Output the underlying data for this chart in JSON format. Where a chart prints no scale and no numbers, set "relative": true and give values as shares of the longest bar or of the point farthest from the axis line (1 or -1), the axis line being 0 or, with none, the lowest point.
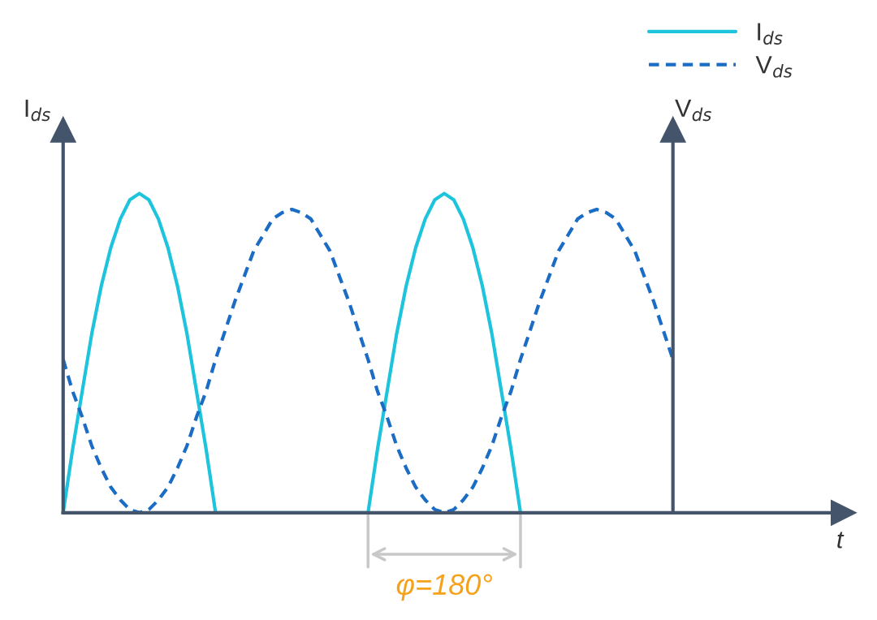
{
  "chart_data": {
    "type": "line",
    "relative": true,
    "ylabel": "I$_{ds}$",
    "y2label": "V$_{ds}$",
    "legend": "top right",
    "annotations": [
      "t",
      "φ=180°"
    ],
    "categories": [
      null,
      null,
      null,
      null,
      null,
      null,
      null,
      null,
      null,
      null,
      null,
      null,
      null,
      null,
      null,
      null,
      null,
      null,
      null,
      null,
      null,
      null,
      null,
      null,
      null,
      null,
      null,
      null,
      null,
      null,
      null,
      null,
      null,
      null,
      null,
      null,
      null,
      null,
      null,
      null,
      null,
      null,
      null,
      null,
      null,
      null,
      null,
      null,
      null,
      null,
      null,
      null,
      null,
      null,
      null,
      null,
      null,
      null,
      null,
      null,
      null,
      null,
      null,
      null,
      null
    ],
    "series": [
      {
        "name": "I$_{ds}$",
        "color": "#1ec3dc",
        "line_style": "solid",
        "values": [
          0,
          0.2,
          0.38,
          0.56,
          0.71,
          0.83,
          0.92,
          0.98,
          1,
          0.98,
          0.92,
          0.83,
          0.71,
          0.56,
          0.38,
          0.2,
          0,
          null,
          null,
          null,
          null,
          null,
          null,
          null,
          null,
          null,
          null,
          null,
          null,
          null,
          null,
          null,
          0,
          0.2,
          0.38,
          0.56,
          0.71,
          0.83,
          0.92,
          0.98,
          1,
          0.98,
          0.92,
          0.83,
          0.71,
          0.56,
          0.38,
          0.2,
          0,
          null,
          null,
          null,
          null,
          null,
          null,
          null,
          null,
          null,
          null,
          null,
          null,
          null,
          null,
          null,
          null
        ]
      },
      {
        "name": "V$_{ds}$",
        "color": "#1a6cc4",
        "line_style": "dashed",
        "values": [
          0.48,
          0.38,
          0.3,
          0.21,
          0.14,
          0.08,
          0.04,
          0.01,
          0,
          0.01,
          0.04,
          0.08,
          0.14,
          0.21,
          0.3,
          0.38,
          0.48,
          0.57,
          0.66,
          0.74,
          0.82,
          0.87,
          0.92,
          0.94,
          0.95,
          0.94,
          0.92,
          0.87,
          0.82,
          0.74,
          0.66,
          0.57,
          0.48,
          0.38,
          0.3,
          0.21,
          0.14,
          0.08,
          0.04,
          0.01,
          0,
          0.01,
          0.04,
          0.08,
          0.14,
          0.21,
          0.3,
          0.38,
          0.48,
          0.57,
          0.66,
          0.74,
          0.82,
          0.87,
          0.92,
          0.94,
          0.95,
          0.94,
          0.92,
          0.87,
          0.82,
          0.74,
          0.66,
          0.57,
          0.48
        ]
      }
    ]
  }
}
